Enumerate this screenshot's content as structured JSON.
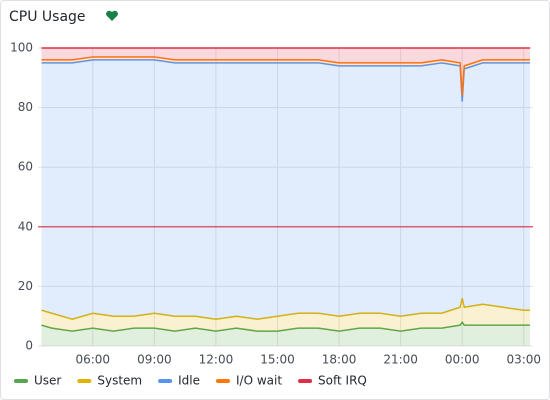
{
  "chart_data": {
    "type": "stacked-area",
    "title": "CPU Usage",
    "x": [
      3.5,
      4,
      5,
      6,
      7,
      8,
      9,
      10,
      11,
      12,
      13,
      14,
      15,
      16,
      17,
      18,
      19,
      20,
      21,
      22,
      23,
      23.9,
      24,
      24.1,
      25,
      26,
      27,
      27.3
    ],
    "xlim": [
      3.33,
      27.45
    ],
    "xticks": [
      {
        "value": 6,
        "label": "06:00"
      },
      {
        "value": 9,
        "label": "09:00"
      },
      {
        "value": 12,
        "label": "12:00"
      },
      {
        "value": 15,
        "label": "15:00"
      },
      {
        "value": 18,
        "label": "18:00"
      },
      {
        "value": 21,
        "label": "21:00"
      },
      {
        "value": 24,
        "label": "00:00"
      },
      {
        "value": 27,
        "label": "03:00"
      }
    ],
    "ylim": [
      0,
      100
    ],
    "yticks": [
      0,
      20,
      40,
      60,
      80,
      100
    ],
    "grid": true,
    "threshold": {
      "value": 40,
      "color": "#e02f44"
    },
    "legend": "bottom",
    "series": [
      {
        "name": "User",
        "color": "#56a64b",
        "values": [
          7,
          6,
          5,
          6,
          5,
          6,
          6,
          5,
          6,
          5,
          6,
          5,
          5,
          6,
          6,
          5,
          6,
          6,
          5,
          6,
          6,
          7,
          8,
          7,
          7,
          7,
          7,
          7
        ]
      },
      {
        "name": "System",
        "color": "#e0b400",
        "values": [
          5,
          5,
          4,
          5,
          5,
          4,
          5,
          5,
          4,
          4,
          4,
          4,
          5,
          5,
          5,
          5,
          5,
          5,
          5,
          5,
          5,
          6,
          8,
          6,
          7,
          6,
          5,
          5
        ]
      },
      {
        "name": "Idle",
        "color": "#5794f2",
        "values": [
          83,
          84,
          86,
          85,
          86,
          86,
          85,
          85,
          85,
          86,
          85,
          86,
          85,
          84,
          84,
          84,
          83,
          83,
          84,
          83,
          84,
          81,
          66,
          80,
          81,
          82,
          83,
          83
        ]
      },
      {
        "name": "I/O wait",
        "color": "#ff780a",
        "values": [
          1,
          1,
          1,
          1,
          1,
          1,
          1,
          1,
          1,
          1,
          1,
          1,
          1,
          1,
          1,
          1,
          1,
          1,
          1,
          1,
          1,
          1,
          2,
          1,
          1,
          1,
          1,
          1
        ]
      },
      {
        "name": "Soft IRQ",
        "color": "#e02f44",
        "values": [
          4,
          4,
          4,
          3,
          3,
          3,
          3,
          4,
          4,
          4,
          4,
          4,
          4,
          4,
          4,
          5,
          5,
          5,
          5,
          5,
          4,
          5,
          16,
          6,
          4,
          4,
          4,
          4
        ]
      }
    ]
  }
}
